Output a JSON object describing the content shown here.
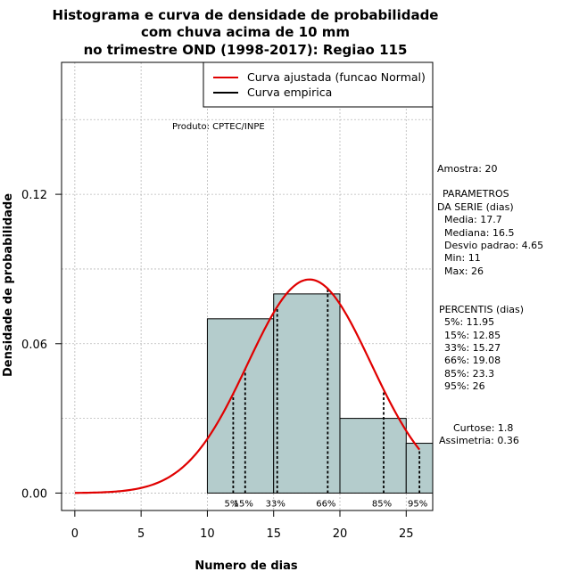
{
  "chart_data": {
    "type": "bar",
    "title_lines": [
      "Histograma e curva de densidade de probabilidade",
      "com chuva acima de 10 mm",
      "no trimestre OND (1998-2017): Regiao 115"
    ],
    "xlabel": "Numero de dias",
    "ylabel": "Densidade de probabilidade",
    "xlim": [
      -1,
      27
    ],
    "ylim": [
      -0.007,
      0.173
    ],
    "x_ticks": [
      0,
      5,
      10,
      15,
      20,
      25
    ],
    "x_tick_labels": [
      "0",
      "5",
      "10",
      "15",
      "20",
      "25"
    ],
    "y_ticks": [
      0.0,
      0.06,
      0.12
    ],
    "y_tick_labels": [
      "0.00",
      "0.06",
      "0.12"
    ],
    "grid": true,
    "histogram": [
      {
        "x0": 10,
        "x1": 15,
        "density": 0.07
      },
      {
        "x0": 15,
        "x1": 20,
        "density": 0.08
      },
      {
        "x0": 20,
        "x1": 25,
        "density": 0.03
      },
      {
        "x0": 25,
        "x1": 27,
        "density": 0.02
      }
    ],
    "fitted_normal": {
      "mean": 17.7,
      "sd": 4.65,
      "x_from": 0,
      "x_to": 26
    },
    "percentile_lines": [
      {
        "label": "5%",
        "x": 11.95
      },
      {
        "label": "15%",
        "x": 12.85
      },
      {
        "label": "33%",
        "x": 15.27
      },
      {
        "label": "66%",
        "x": 19.08
      },
      {
        "label": "85%",
        "x": 23.3
      },
      {
        "label": "95%",
        "x": 26
      }
    ],
    "legend": {
      "position": "top-right",
      "entries": [
        {
          "label": "Curva ajustada (funcao Normal)",
          "color": "#e00000"
        },
        {
          "label": "Curva empirica",
          "color": "#000000"
        }
      ]
    },
    "annotation": "Produto: CPTEC/INPE",
    "colors": {
      "bar_fill": "#b4cccc",
      "curve": "#e00000",
      "grid": "#b8b8b8"
    }
  },
  "side_panel": {
    "amostra": "Amostra: 20",
    "param_title_1": "PARAMETROS",
    "param_title_2": "DA SERIE (dias)",
    "media": "Media: 17.7",
    "mediana": "Mediana: 16.5",
    "desvio": "Desvio padrao: 4.65",
    "min": "Min: 11",
    "max": "Max: 26",
    "percentis_title": "PERCENTIS (dias)",
    "p5": "5%: 11.95",
    "p15": "15%: 12.85",
    "p33": "33%: 15.27",
    "p66": "66%: 19.08",
    "p85": "85%: 23.3",
    "p95": "95%: 26",
    "curtose": "Curtose: 1.8",
    "assimetria": "Assimetria: 0.36"
  }
}
